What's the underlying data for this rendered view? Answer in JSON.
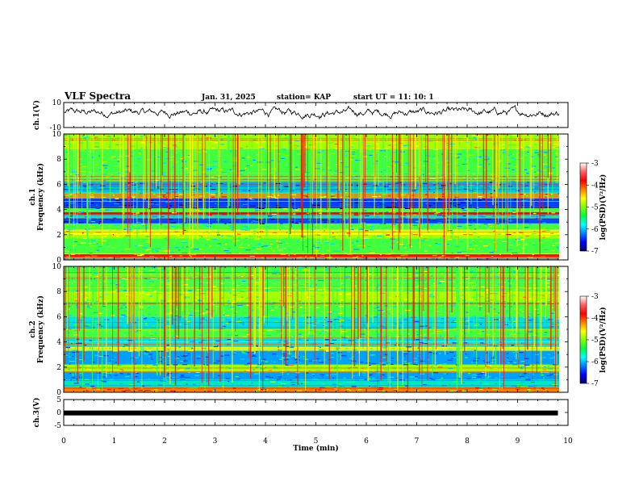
{
  "header": {
    "title": "VLF Spectra",
    "date": "Jan. 31, 2025",
    "station": "station= KAP",
    "start_time": "start UT =  11: 10: 1"
  },
  "chart_data": [
    {
      "type": "line",
      "name": "ch1-waveform",
      "ylabel": "ch.1(V)",
      "ylim": [
        -10,
        10
      ],
      "ytick_labels": [
        "10",
        "-10"
      ],
      "xlim": [
        0,
        10
      ],
      "series": [
        {
          "name": "ch.1",
          "description": "noisy amplitude trace roughly between -4 and 7 V",
          "color": "#000000"
        }
      ]
    },
    {
      "type": "heatmap",
      "name": "ch1-spectrogram",
      "ylabel": "ch.1\nFrequency (kHz)",
      "ylabel_lines": [
        "ch.1",
        "Frequency (kHz)"
      ],
      "xlim": [
        0,
        9.8
      ],
      "ylim": [
        0,
        10
      ],
      "ytick_labels": [
        "0",
        "2",
        "4",
        "6",
        "8",
        "10"
      ],
      "colorbar": {
        "label": "log(PSD)(V²/Hz)",
        "range": [
          -7,
          -3
        ],
        "tick_labels": [
          "-3",
          "-4",
          "-5",
          "-6",
          "-7"
        ],
        "colors": [
          "#000080",
          "#0050ff",
          "#00ffff",
          "#00ff00",
          "#ffff00",
          "#ff0000",
          "#ffffff"
        ]
      },
      "bands_khz": [
        {
          "from": 0.0,
          "to": 0.2,
          "level": -5.5
        },
        {
          "from": 0.2,
          "to": 0.45,
          "level": -3.6
        },
        {
          "from": 0.45,
          "to": 1.7,
          "level": -5.0
        },
        {
          "from": 1.7,
          "to": 2.0,
          "level": -4.6
        },
        {
          "from": 2.0,
          "to": 2.4,
          "level": -4.2
        },
        {
          "from": 2.4,
          "to": 2.9,
          "level": -5.2
        },
        {
          "from": 2.9,
          "to": 3.3,
          "level": -6.3
        },
        {
          "from": 3.3,
          "to": 3.6,
          "level": -5.6
        },
        {
          "from": 3.6,
          "to": 3.8,
          "level": -3.6
        },
        {
          "from": 3.8,
          "to": 4.1,
          "level": -5.0
        },
        {
          "from": 4.1,
          "to": 4.9,
          "level": -6.5
        },
        {
          "from": 4.9,
          "to": 5.3,
          "level": -4.0
        },
        {
          "from": 5.3,
          "to": 5.5,
          "level": -5.4
        },
        {
          "from": 5.5,
          "to": 6.2,
          "level": -6.0
        },
        {
          "from": 6.2,
          "to": 6.9,
          "level": -5.0
        },
        {
          "from": 6.9,
          "to": 8.8,
          "level": -5.1
        },
        {
          "from": 8.8,
          "to": 10.0,
          "level": -4.6
        }
      ]
    },
    {
      "type": "heatmap",
      "name": "ch2-spectrogram",
      "ylabel": "ch.2\nFrequency (kHz)",
      "ylabel_lines": [
        "ch.2",
        "Frequency (kHz)"
      ],
      "xlim": [
        0,
        9.8
      ],
      "ylim": [
        0,
        10
      ],
      "ytick_labels": [
        "0",
        "2",
        "4",
        "6",
        "8",
        "10"
      ],
      "colorbar": {
        "label": "log(PSD)(V²/Hz)",
        "range": [
          -7,
          -3
        ],
        "tick_labels": [
          "-3",
          "-4",
          "-5",
          "-6",
          "-7"
        ],
        "colors": [
          "#000080",
          "#0050ff",
          "#00ffff",
          "#00ff00",
          "#ffff00",
          "#ff0000",
          "#ffffff"
        ]
      },
      "bands_khz": [
        {
          "from": 0.0,
          "to": 0.4,
          "level": -4.0
        },
        {
          "from": 0.4,
          "to": 1.0,
          "level": -5.4
        },
        {
          "from": 1.0,
          "to": 1.6,
          "level": -5.8
        },
        {
          "from": 1.6,
          "to": 2.2,
          "level": -4.6
        },
        {
          "from": 2.2,
          "to": 3.3,
          "level": -5.8
        },
        {
          "from": 3.3,
          "to": 3.6,
          "level": -4.3
        },
        {
          "from": 3.6,
          "to": 4.3,
          "level": -5.6
        },
        {
          "from": 4.3,
          "to": 5.0,
          "level": -5.0
        },
        {
          "from": 5.0,
          "to": 6.0,
          "level": -5.4
        },
        {
          "from": 6.0,
          "to": 7.2,
          "level": -5.0
        },
        {
          "from": 7.2,
          "to": 8.0,
          "level": -4.6
        },
        {
          "from": 8.0,
          "to": 10.0,
          "level": -4.9
        }
      ]
    },
    {
      "type": "line",
      "name": "ch3-signal",
      "ylabel": "ch.3(V)",
      "ylim": [
        -5,
        5
      ],
      "ytick_labels": [
        "5",
        "0",
        "-5"
      ],
      "xlim": [
        0,
        10
      ],
      "series": [
        {
          "name": "ch.3",
          "description": "constant level near -0.2 V drawn as thick black band",
          "x": [
            0,
            9.8
          ],
          "y": [
            -0.2,
            -0.2
          ],
          "color": "#000000"
        }
      ]
    }
  ],
  "x_axis": {
    "label": "Time (min)",
    "xlim": [
      0,
      10
    ],
    "ticks": [
      0,
      1,
      2,
      3,
      4,
      5,
      6,
      7,
      8,
      9,
      10
    ],
    "tick_labels": [
      "0",
      "1",
      "2",
      "3",
      "4",
      "5",
      "6",
      "7",
      "8",
      "9",
      "10"
    ]
  }
}
